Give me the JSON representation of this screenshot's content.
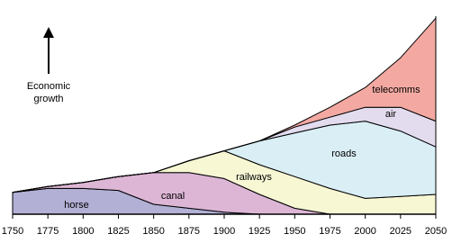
{
  "chart_data": {
    "type": "stacked-area",
    "annotation": [
      "Economic",
      "growth"
    ],
    "x": [
      1750,
      1775,
      1800,
      1825,
      1850,
      1875,
      1900,
      1925,
      1950,
      1975,
      2000,
      2025,
      2050
    ],
    "xlim": [
      1750,
      2050
    ],
    "xticks": [
      1750,
      1775,
      1800,
      1825,
      1850,
      1875,
      1900,
      1925,
      1950,
      1975,
      2000,
      2025,
      2050
    ],
    "ylim": [
      0,
      100
    ],
    "series": [
      {
        "name": "horse",
        "color": "#b3b0d6",
        "values": [
          11,
          13,
          13,
          12,
          5,
          3,
          1,
          0,
          0,
          0,
          0,
          0,
          0
        ]
      },
      {
        "name": "canal",
        "color": "#ddb6d6",
        "values": [
          0,
          1,
          3,
          7,
          16,
          18,
          17,
          10,
          3,
          0,
          0,
          0,
          0
        ]
      },
      {
        "name": "railways",
        "color": "#f7f7d4",
        "values": [
          0,
          0,
          0,
          0,
          0,
          6,
          14,
          15,
          16,
          13,
          8,
          9,
          10
        ]
      },
      {
        "name": "roads",
        "color": "#d9eef5",
        "values": [
          0,
          0,
          0,
          0,
          0,
          0,
          0,
          12,
          22,
          32,
          39,
          33,
          24
        ]
      },
      {
        "name": "air",
        "color": "#e3dcef",
        "values": [
          0,
          0,
          0,
          0,
          0,
          0,
          0,
          0,
          3,
          4,
          7,
          12,
          13
        ]
      },
      {
        "name": "telecomms",
        "color": "#f3a9a2",
        "values": [
          0,
          0,
          0,
          0,
          0,
          0,
          0,
          0,
          1,
          5,
          10,
          25,
          52
        ]
      }
    ]
  }
}
